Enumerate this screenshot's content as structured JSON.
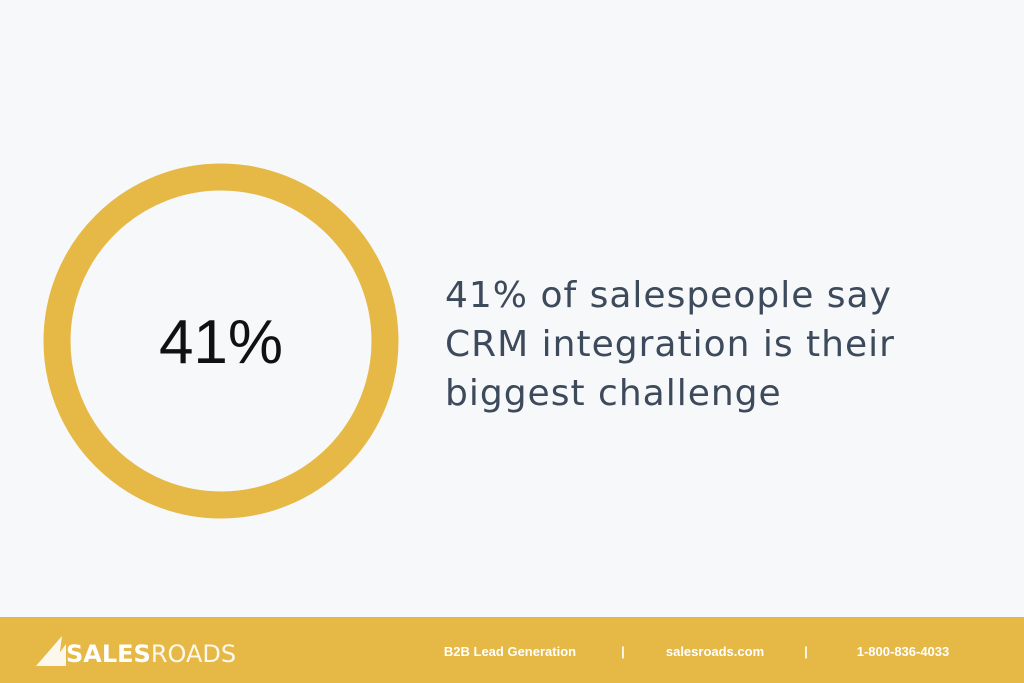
{
  "stat": {
    "value": "41%",
    "lines": [
      "41% of salespeople say",
      "CRM integration is their",
      "biggest challenge"
    ]
  },
  "footer": {
    "brand_bold": "SALES",
    "brand_light": "ROADS",
    "separator": "|",
    "items": [
      "B2B Lead Generation",
      "salesroads.com",
      "1-800-836-4033"
    ]
  }
}
